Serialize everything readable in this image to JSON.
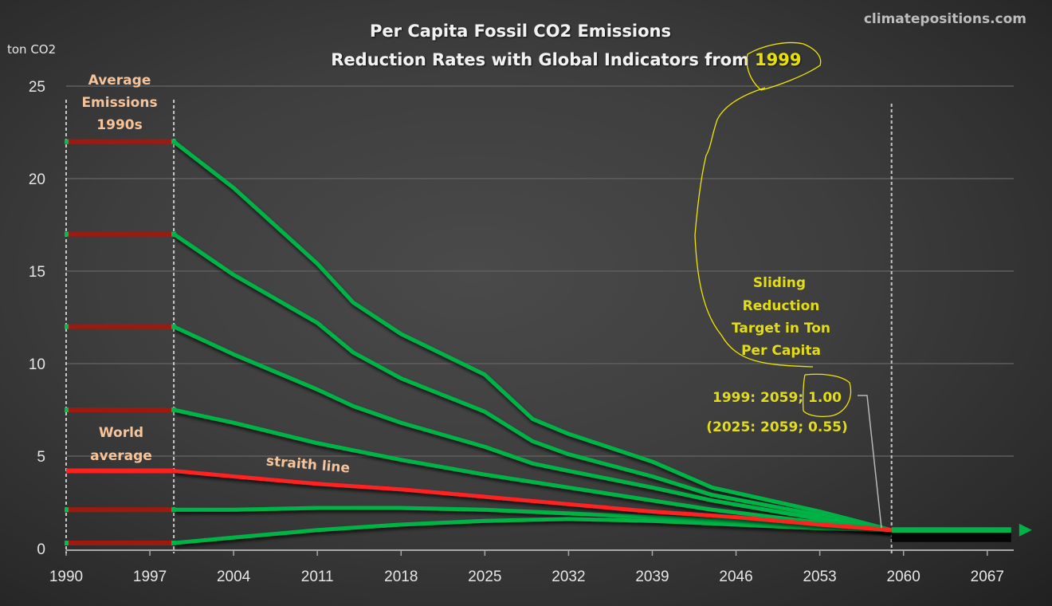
{
  "chart_data": {
    "type": "line",
    "title": "Per Capita Fossil CO2 Emissions",
    "subtitle_prefix": "Reduction Rates with Global Indicators from",
    "subtitle_highlight": "1999",
    "watermark": "climatepositions.com",
    "ylabel": "ton CO2",
    "xlabel": "",
    "ylim": [
      0,
      25
    ],
    "xlim": [
      1990,
      2070
    ],
    "yticks": [
      "0",
      "5",
      "10",
      "15",
      "20",
      "25"
    ],
    "ytick_values": [
      0,
      5,
      10,
      15,
      20,
      25
    ],
    "xticks": [
      "1990",
      "1997",
      "2004",
      "2011",
      "2018",
      "2025",
      "2032",
      "2039",
      "2046",
      "2053",
      "2060",
      "2067"
    ],
    "xtick_values": [
      1990,
      1997,
      2004,
      2011,
      2018,
      2025,
      2032,
      2039,
      2046,
      2053,
      2060,
      2067
    ],
    "grid": true,
    "legend": "none",
    "baseline_period": {
      "start": 1990,
      "end": 1999,
      "label": "Average Emissions 1990s",
      "color": "#9e1a10"
    },
    "target_year": 2059,
    "target_value": 1.0,
    "series": [
      {
        "name": "22 ton",
        "color": "#00b346",
        "baseline": 22.0,
        "x": [
          1999,
          2004,
          2011,
          2014,
          2018,
          2025,
          2029,
          2032,
          2039,
          2044,
          2053,
          2059
        ],
        "values": [
          22.0,
          19.5,
          15.4,
          13.3,
          11.6,
          9.4,
          7.0,
          6.2,
          4.7,
          3.3,
          2.0,
          1.0
        ]
      },
      {
        "name": "17 ton",
        "color": "#00b346",
        "baseline": 17.0,
        "x": [
          1999,
          2004,
          2011,
          2014,
          2018,
          2025,
          2029,
          2032,
          2039,
          2044,
          2053,
          2059
        ],
        "values": [
          17.0,
          14.8,
          12.2,
          10.6,
          9.2,
          7.4,
          5.8,
          5.1,
          3.9,
          2.9,
          1.8,
          1.0
        ]
      },
      {
        "name": "12 ton",
        "color": "#00b346",
        "baseline": 12.0,
        "x": [
          1999,
          2004,
          2011,
          2014,
          2018,
          2025,
          2029,
          2032,
          2039,
          2044,
          2053,
          2059
        ],
        "values": [
          12.0,
          10.5,
          8.6,
          7.7,
          6.8,
          5.5,
          4.6,
          4.2,
          3.3,
          2.6,
          1.6,
          1.0
        ]
      },
      {
        "name": "7.5 ton",
        "color": "#00b346",
        "baseline": 7.5,
        "x": [
          1999,
          2004,
          2011,
          2018,
          2025,
          2032,
          2039,
          2044,
          2053,
          2059
        ],
        "values": [
          7.5,
          6.8,
          5.7,
          4.8,
          4.0,
          3.3,
          2.6,
          2.1,
          1.4,
          1.0
        ]
      },
      {
        "name": "World average",
        "color": "#ff2020",
        "baseline": 4.2,
        "label": "straith line",
        "x": [
          1999,
          2004,
          2011,
          2018,
          2025,
          2032,
          2039,
          2046,
          2053,
          2059
        ],
        "values": [
          4.2,
          3.9,
          3.5,
          3.2,
          2.8,
          2.4,
          2.0,
          1.7,
          1.3,
          1.0
        ]
      },
      {
        "name": "2.1 ton",
        "color": "#00b346",
        "baseline": 2.1,
        "x": [
          1999,
          2004,
          2011,
          2018,
          2025,
          2032,
          2039,
          2046,
          2053,
          2059
        ],
        "values": [
          2.1,
          2.1,
          2.2,
          2.2,
          2.1,
          1.9,
          1.7,
          1.5,
          1.3,
          1.0
        ]
      },
      {
        "name": "0.3 ton",
        "color": "#00b346",
        "baseline": 0.3,
        "x": [
          1999,
          2004,
          2011,
          2018,
          2025,
          2032,
          2039,
          2046,
          2053,
          2059
        ],
        "values": [
          0.3,
          0.6,
          1.0,
          1.3,
          1.5,
          1.6,
          1.5,
          1.3,
          1.1,
          1.0
        ]
      }
    ],
    "target_line": {
      "x": [
        2059,
        2069
      ],
      "values": [
        1.0,
        1.0
      ],
      "color": "#00b346"
    },
    "annotations": {
      "baseline_label": [
        "Average",
        "Emissions",
        "1990s"
      ],
      "world_label": [
        "World",
        "average"
      ],
      "straith_label": "straith line",
      "target_label": [
        "Sliding",
        "Reduction",
        "Target in Ton",
        "Per Capita"
      ],
      "target_line1": "1999: 2059; 1.00",
      "target_line2": "(2025: 2059; 0.55)"
    }
  }
}
